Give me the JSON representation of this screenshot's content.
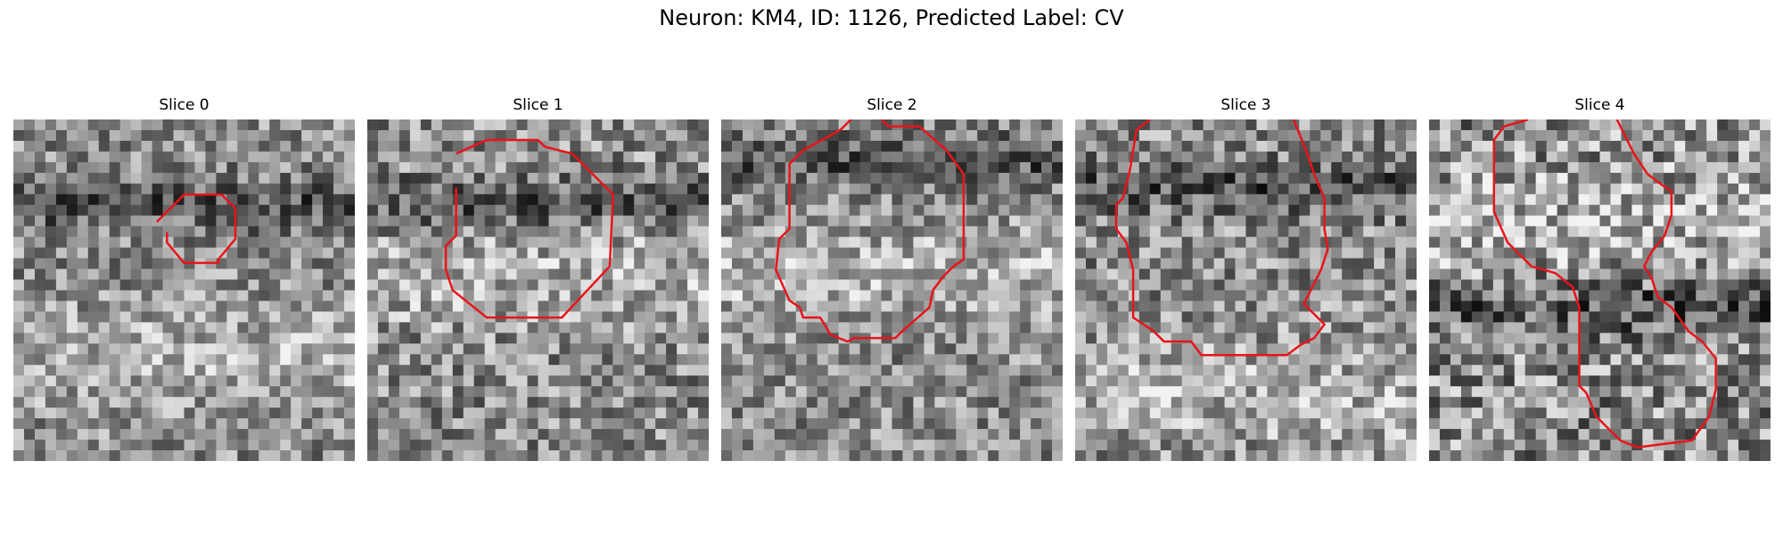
{
  "figure": {
    "title": "Neuron: KM4, ID: 1126, Predicted Label: CV"
  },
  "colors": {
    "contour": "#e8141a",
    "colormap": "grayscale"
  },
  "slices": [
    {
      "title": "Slice 0",
      "tone": {
        "dark_band_y": 0.25,
        "bright_y": 0.7,
        "contrast": 0.55
      },
      "contour": [
        [
          0.42,
          0.3
        ],
        [
          0.5,
          0.22
        ],
        [
          0.61,
          0.22
        ],
        [
          0.65,
          0.26
        ],
        [
          0.65,
          0.35
        ],
        [
          0.6,
          0.41
        ],
        [
          0.6,
          0.42
        ],
        [
          0.5,
          0.42
        ],
        [
          0.45,
          0.36
        ],
        [
          0.45,
          0.33
        ]
      ]
    },
    {
      "title": "Slice 1",
      "tone": {
        "dark_band_y": 0.25,
        "bright_y": 0.45,
        "contrast": 0.6
      },
      "contour": [
        [
          0.26,
          0.1
        ],
        [
          0.35,
          0.06
        ],
        [
          0.5,
          0.06
        ],
        [
          0.52,
          0.08
        ],
        [
          0.6,
          0.1
        ],
        [
          0.72,
          0.22
        ],
        [
          0.71,
          0.43
        ],
        [
          0.57,
          0.58
        ],
        [
          0.35,
          0.58
        ],
        [
          0.25,
          0.5
        ],
        [
          0.23,
          0.44
        ],
        [
          0.23,
          0.37
        ],
        [
          0.26,
          0.34
        ],
        [
          0.26,
          0.2
        ]
      ]
    },
    {
      "title": "Slice 2",
      "tone": {
        "dark_band_y": 0.12,
        "bright_y": 0.45,
        "contrast": 0.55
      },
      "contour": [
        [
          0.38,
          0.0
        ],
        [
          0.35,
          0.03
        ],
        [
          0.24,
          0.09
        ],
        [
          0.2,
          0.13
        ],
        [
          0.2,
          0.32
        ],
        [
          0.17,
          0.35
        ],
        [
          0.16,
          0.44
        ],
        [
          0.2,
          0.53
        ],
        [
          0.23,
          0.55
        ],
        [
          0.24,
          0.58
        ],
        [
          0.29,
          0.58
        ],
        [
          0.32,
          0.63
        ],
        [
          0.37,
          0.65
        ],
        [
          0.39,
          0.64
        ],
        [
          0.51,
          0.64
        ],
        [
          0.53,
          0.62
        ],
        [
          0.61,
          0.55
        ],
        [
          0.62,
          0.5
        ],
        [
          0.65,
          0.46
        ],
        [
          0.68,
          0.43
        ],
        [
          0.71,
          0.41
        ],
        [
          0.71,
          0.16
        ],
        [
          0.66,
          0.09
        ],
        [
          0.58,
          0.02
        ],
        [
          0.49,
          0.02
        ],
        [
          0.47,
          0.0
        ]
      ]
    },
    {
      "title": "Slice 3",
      "tone": {
        "dark_band_y": 0.2,
        "bright_y": 0.8,
        "contrast": 0.6
      },
      "contour": [
        [
          0.22,
          0.0
        ],
        [
          0.18,
          0.03
        ],
        [
          0.16,
          0.15
        ],
        [
          0.14,
          0.23
        ],
        [
          0.12,
          0.25
        ],
        [
          0.12,
          0.32
        ],
        [
          0.15,
          0.36
        ],
        [
          0.17,
          0.44
        ],
        [
          0.17,
          0.58
        ],
        [
          0.23,
          0.62
        ],
        [
          0.26,
          0.65
        ],
        [
          0.34,
          0.65
        ],
        [
          0.37,
          0.69
        ],
        [
          0.62,
          0.69
        ],
        [
          0.66,
          0.66
        ],
        [
          0.7,
          0.64
        ],
        [
          0.73,
          0.6
        ],
        [
          0.67,
          0.54
        ],
        [
          0.69,
          0.5
        ],
        [
          0.72,
          0.44
        ],
        [
          0.74,
          0.38
        ],
        [
          0.73,
          0.32
        ],
        [
          0.73,
          0.23
        ],
        [
          0.7,
          0.16
        ],
        [
          0.68,
          0.1
        ],
        [
          0.66,
          0.05
        ],
        [
          0.64,
          0.0
        ]
      ]
    },
    {
      "title": "Slice 4",
      "tone": {
        "dark_band_y": 0.55,
        "bright_y": 0.3,
        "contrast": 0.7
      },
      "contour": [
        [
          0.29,
          0.0
        ],
        [
          0.22,
          0.02
        ],
        [
          0.19,
          0.06
        ],
        [
          0.19,
          0.27
        ],
        [
          0.23,
          0.36
        ],
        [
          0.3,
          0.43
        ],
        [
          0.37,
          0.45
        ],
        [
          0.42,
          0.49
        ],
        [
          0.44,
          0.55
        ],
        [
          0.44,
          0.78
        ],
        [
          0.46,
          0.8
        ],
        [
          0.49,
          0.87
        ],
        [
          0.53,
          0.91
        ],
        [
          0.56,
          0.94
        ],
        [
          0.61,
          0.96
        ],
        [
          0.69,
          0.95
        ],
        [
          0.77,
          0.94
        ],
        [
          0.82,
          0.87
        ],
        [
          0.84,
          0.79
        ],
        [
          0.84,
          0.7
        ],
        [
          0.8,
          0.65
        ],
        [
          0.76,
          0.62
        ],
        [
          0.71,
          0.55
        ],
        [
          0.67,
          0.52
        ],
        [
          0.65,
          0.46
        ],
        [
          0.63,
          0.43
        ],
        [
          0.65,
          0.39
        ],
        [
          0.69,
          0.34
        ],
        [
          0.71,
          0.28
        ],
        [
          0.71,
          0.21
        ],
        [
          0.68,
          0.19
        ],
        [
          0.64,
          0.16
        ],
        [
          0.6,
          0.1
        ],
        [
          0.55,
          0.0
        ]
      ]
    }
  ]
}
